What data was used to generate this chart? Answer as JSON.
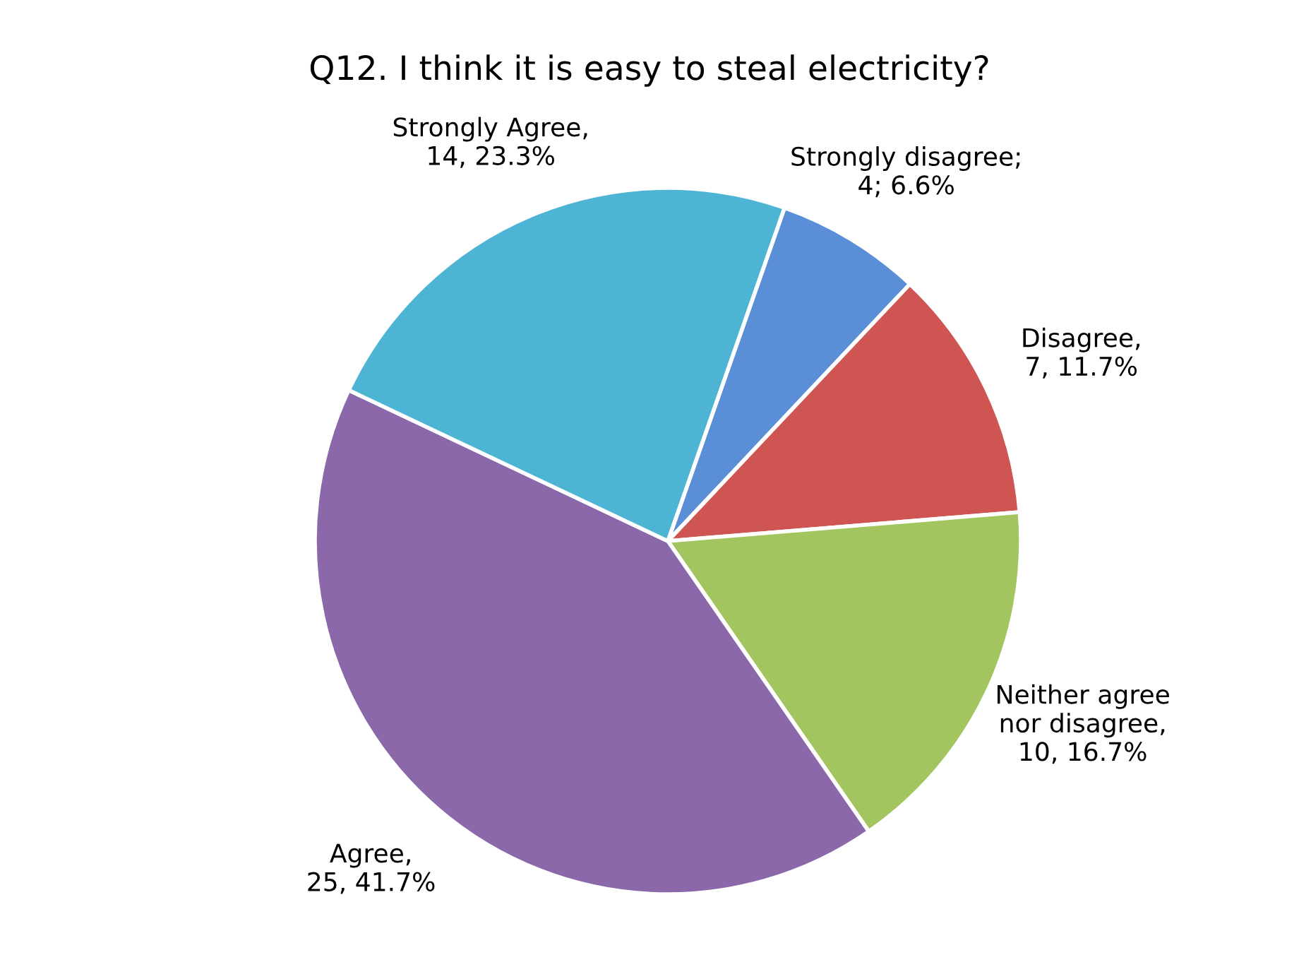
{
  "chart_data": {
    "type": "pie",
    "title": "Q12. I think it is easy to steal electricity?",
    "categories": [
      "Strongly disagree",
      "Disagree",
      "Neither agree nor disagree",
      "Agree",
      "Strongly Agree"
    ],
    "values": [
      4,
      7,
      10,
      25,
      14
    ],
    "colors": [
      "#5a8fd8",
      "#cf5552",
      "#a3c55f",
      "#8a68aa",
      "#4db5d3"
    ],
    "value_labels": [
      ";\n4; 6.6%",
      ",\n7, 11.7%",
      ",\n10, 16.7%",
      ",\n25, 41.7%",
      ",\n14, 23.3%"
    ]
  }
}
